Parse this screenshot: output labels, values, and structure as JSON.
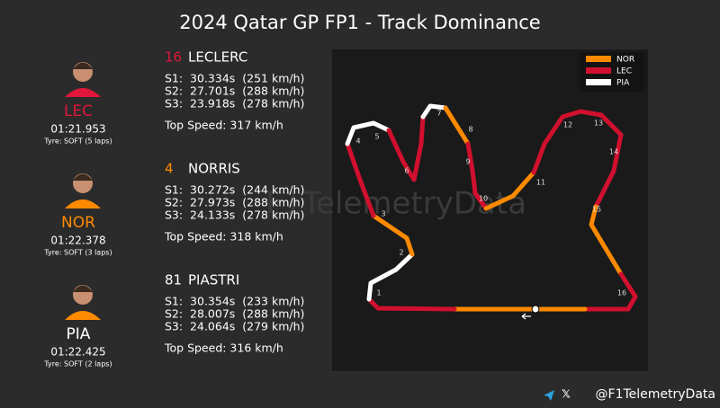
{
  "header": {
    "title": "2024 Qatar GP FP1 - Track Dominance"
  },
  "drivers": [
    {
      "number": "16",
      "name": "LECLERC",
      "code": "LEC",
      "color": "#e0163a",
      "lap_time": "01:21.953",
      "tyre": "Tyre: SOFT (5 laps)",
      "sectors": [
        "S1:  30.334s  (251 km/h)",
        "S2:  27.701s  (288 km/h)",
        "S3:  23.918s  (278 km/h)"
      ],
      "top_speed": "Top Speed: 317 km/h"
    },
    {
      "number": "4",
      "name": "NORRIS",
      "code": "NOR",
      "color": "#ff8a00",
      "lap_time": "01:22.378",
      "tyre": "Tyre: SOFT (3 laps)",
      "sectors": [
        "S1:  30.272s  (244 km/h)",
        "S2:  27.973s  (288 km/h)",
        "S3:  24.133s  (278 km/h)"
      ],
      "top_speed": "Top Speed: 318 km/h"
    },
    {
      "number": "81",
      "name": "PIASTRI",
      "code": "PIA",
      "color": "#ffffff",
      "lap_time": "01:22.425",
      "tyre": "Tyre: SOFT (2 laps)",
      "sectors": [
        "S1:  30.354s  (233 km/h)",
        "S2:  28.007s  (288 km/h)",
        "S3:  24.064s  (279 km/h)"
      ],
      "top_speed": "Top Speed: 316 km/h"
    }
  ],
  "legend": [
    {
      "name": "NOR",
      "color": "#ff8a00"
    },
    {
      "name": "LEC",
      "color": "#d0102e"
    },
    {
      "name": "PIA",
      "color": "#ffffff"
    }
  ],
  "corners": [
    "1",
    "2",
    "3",
    "4",
    "5",
    "6",
    "7",
    "8",
    "9",
    "10",
    "11",
    "12",
    "13",
    "14",
    "15",
    "16"
  ],
  "watermark": "F1TelemetryData",
  "footer": {
    "handle": "@F1TelemetryData"
  }
}
